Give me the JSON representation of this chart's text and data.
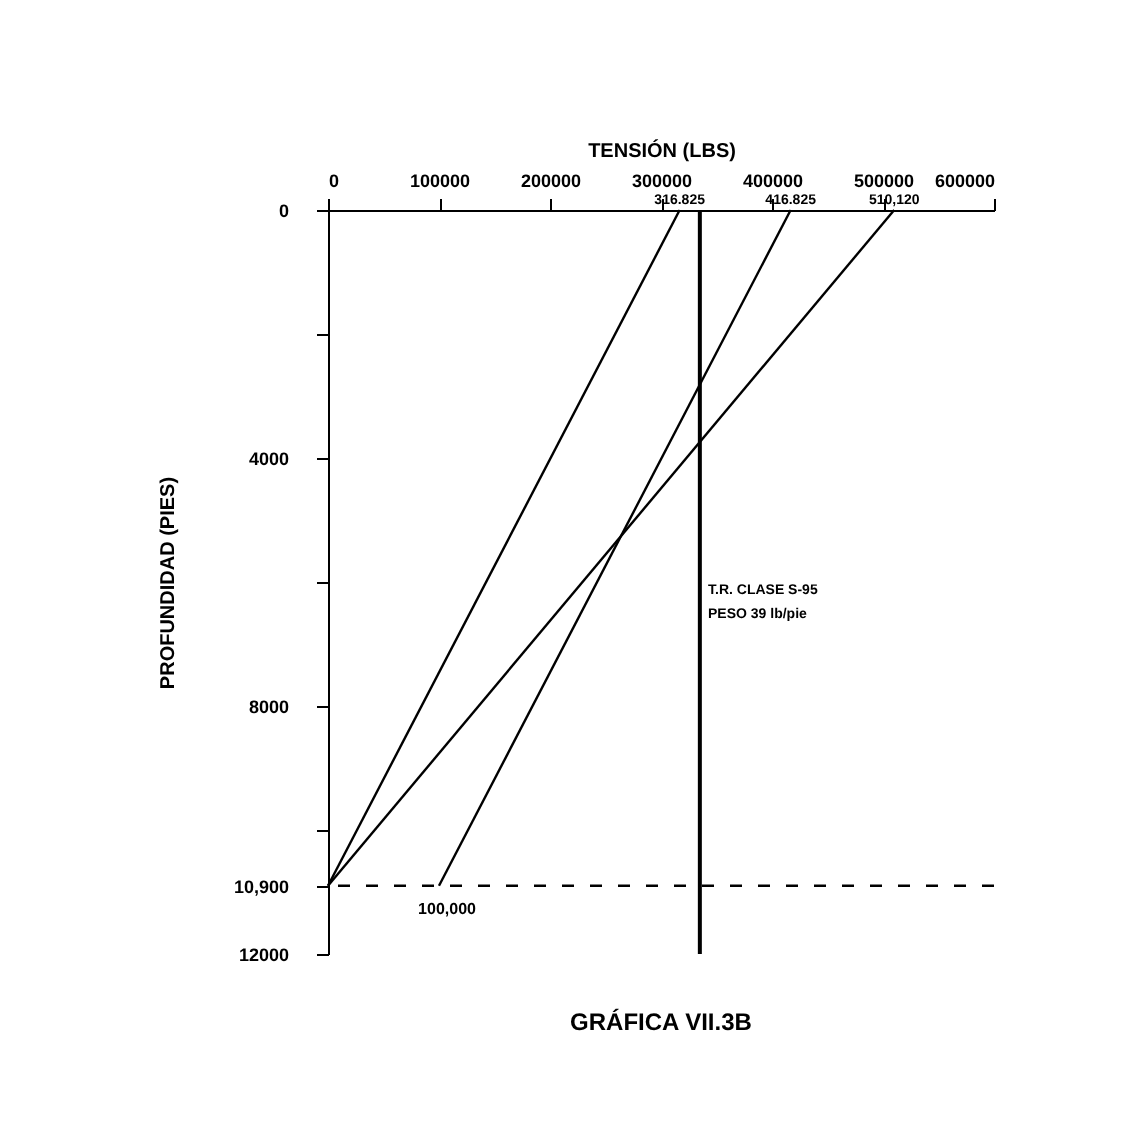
{
  "chart_data": {
    "type": "line",
    "title": "GRÁFICA VII.3B",
    "xlabel": "TENSIÓN (LBS)",
    "ylabel": "PROFUNDIDAD (PIES)",
    "series": [
      {
        "color": "#000000",
        "x": [
          316825,
          0
        ],
        "values": [
          0,
          10900
        ]
      },
      {
        "color": "#000000",
        "x": [
          416825,
          100000
        ],
        "values": [
          0,
          10900
        ]
      },
      {
        "color": "#000000",
        "x": [
          510120,
          0
        ],
        "values": [
          0,
          10900
        ]
      }
    ],
    "xlim": [
      0,
      600000
    ],
    "xticks": [
      0,
      100000,
      200000,
      300000,
      400000,
      500000,
      600000
    ],
    "ylim": [
      12000,
      0
    ],
    "yticks": [
      0,
      {
        "value": 2000,
        "label": null
      },
      4000,
      {
        "value": 6000,
        "label": null
      },
      8000,
      {
        "value": 10000,
        "label": null
      },
      {
        "value": 10900,
        "label": "10,900"
      },
      12000
    ],
    "ref_lines": [
      {
        "axis": "x",
        "value": 335000,
        "label": null,
        "color": "#000000"
      },
      {
        "axis": "y",
        "value": 10900,
        "label": null,
        "color": "#000000",
        "line_style": "dashed"
      }
    ],
    "annotations": [
      {
        "text": "316.825",
        "x": 316825,
        "y": 0
      },
      {
        "text": "416.825",
        "x": 416825,
        "y": 0
      },
      {
        "text": "510,120",
        "x": 510120,
        "y": 0
      },
      {
        "text": "100,000",
        "x": 100000,
        "y": 10900
      },
      "T.R. CLASE S-95",
      "PESO 39 lb/pie"
    ],
    "grid": false,
    "marker": "none",
    "line_style": "solid"
  }
}
